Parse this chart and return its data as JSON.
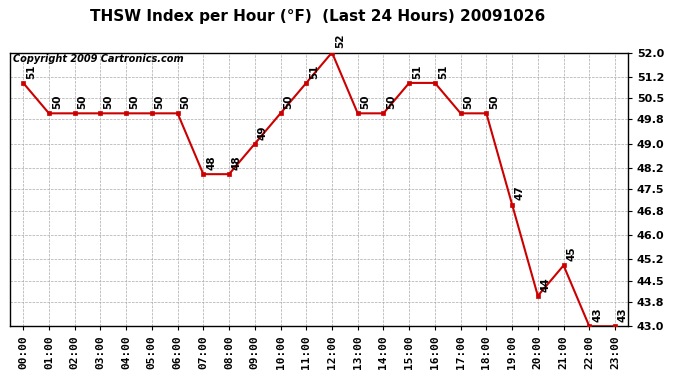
{
  "title": "THSW Index per Hour (°F)  (Last 24 Hours) 20091026",
  "copyright": "Copyright 2009 Cartronics.com",
  "hours": [
    "00:00",
    "01:00",
    "02:00",
    "03:00",
    "04:00",
    "05:00",
    "06:00",
    "07:00",
    "08:00",
    "09:00",
    "10:00",
    "11:00",
    "12:00",
    "13:00",
    "14:00",
    "15:00",
    "16:00",
    "17:00",
    "18:00",
    "19:00",
    "20:00",
    "21:00",
    "22:00",
    "23:00"
  ],
  "values": [
    51,
    50,
    50,
    50,
    50,
    50,
    50,
    48,
    48,
    49,
    50,
    51,
    52,
    50,
    50,
    51,
    51,
    50,
    50,
    47,
    44,
    45,
    43,
    43
  ],
  "ylim_min": 43.0,
  "ylim_max": 52.0,
  "yticks": [
    43.0,
    43.8,
    44.5,
    45.2,
    46.0,
    46.8,
    47.5,
    48.2,
    49.0,
    49.8,
    50.5,
    51.2,
    52.0
  ],
  "line_color": "#cc0000",
  "marker_color": "#cc0000",
  "bg_color": "#ffffff",
  "grid_color": "#aaaaaa",
  "title_fontsize": 11,
  "tick_fontsize": 8,
  "annot_fontsize": 7.5,
  "copyright_fontsize": 7
}
